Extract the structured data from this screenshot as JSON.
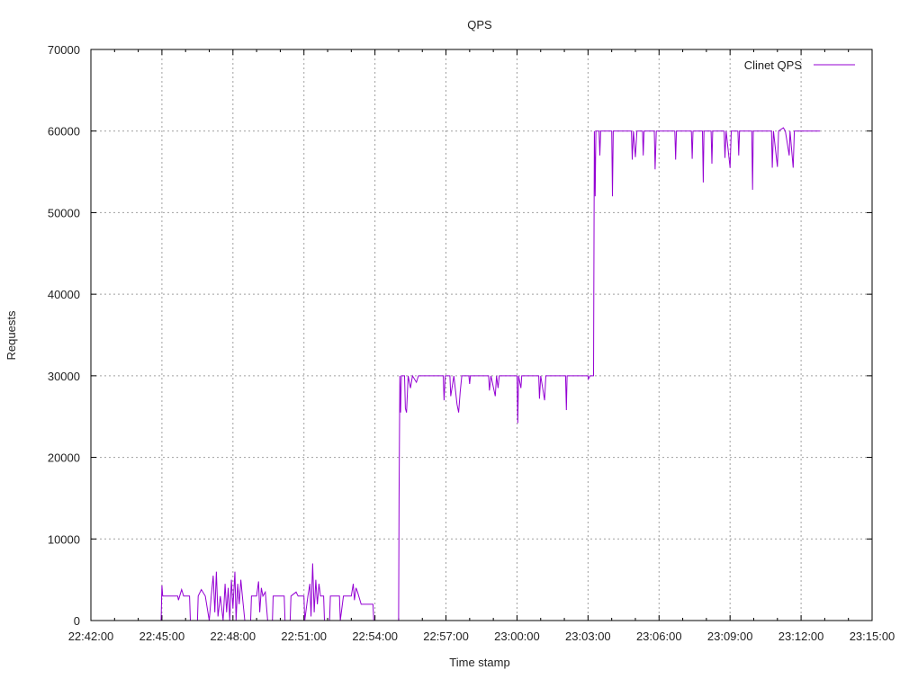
{
  "chart_data": {
    "type": "line",
    "title": "QPS",
    "xlabel": "Time stamp",
    "ylabel": "Requests",
    "xlim": [
      "22:42:00",
      "23:15:00"
    ],
    "ylim": [
      0,
      70000
    ],
    "x_tick_labels": [
      "22:42:00",
      "22:45:00",
      "22:48:00",
      "22:51:00",
      "22:54:00",
      "22:57:00",
      "23:00:00",
      "23:03:00",
      "23:06:00",
      "23:09:00",
      "23:12:00",
      "23:15:00"
    ],
    "y_tick_labels": [
      "0",
      "10000",
      "20000",
      "30000",
      "40000",
      "50000",
      "60000",
      "70000"
    ],
    "grid": true,
    "legend_position": "top-right",
    "series": [
      {
        "name": "Clinet QPS",
        "color": "#9400d3",
        "points": [
          [
            "22:44:58",
            0
          ],
          [
            "22:45:00",
            4300
          ],
          [
            "22:45:02",
            3000
          ],
          [
            "22:45:40",
            3000
          ],
          [
            "22:45:42",
            2500
          ],
          [
            "22:45:50",
            3800
          ],
          [
            "22:45:55",
            3000
          ],
          [
            "22:46:10",
            3000
          ],
          [
            "22:46:12",
            0
          ],
          [
            "22:46:30",
            0
          ],
          [
            "22:46:32",
            3000
          ],
          [
            "22:46:40",
            3800
          ],
          [
            "22:46:50",
            3000
          ],
          [
            "22:47:00",
            0
          ],
          [
            "22:47:05",
            3000
          ],
          [
            "22:47:10",
            5500
          ],
          [
            "22:47:14",
            1000
          ],
          [
            "22:47:18",
            6000
          ],
          [
            "22:47:22",
            500
          ],
          [
            "22:47:28",
            3000
          ],
          [
            "22:47:35",
            0
          ],
          [
            "22:47:40",
            4500
          ],
          [
            "22:47:44",
            1000
          ],
          [
            "22:47:48",
            4000
          ],
          [
            "22:47:52",
            0
          ],
          [
            "22:47:56",
            5000
          ],
          [
            "22:48:00",
            1500
          ],
          [
            "22:48:05",
            6000
          ],
          [
            "22:48:08",
            0
          ],
          [
            "22:48:12",
            4500
          ],
          [
            "22:48:16",
            2000
          ],
          [
            "22:48:20",
            5000
          ],
          [
            "22:48:24",
            3000
          ],
          [
            "22:48:30",
            0
          ],
          [
            "22:48:45",
            0
          ],
          [
            "22:48:47",
            3000
          ],
          [
            "22:49:00",
            3000
          ],
          [
            "22:49:05",
            4800
          ],
          [
            "22:49:08",
            1000
          ],
          [
            "22:49:12",
            4000
          ],
          [
            "22:49:16",
            3000
          ],
          [
            "22:49:22",
            3500
          ],
          [
            "22:49:28",
            0
          ],
          [
            "22:49:40",
            0
          ],
          [
            "22:49:42",
            3000
          ],
          [
            "22:50:10",
            3000
          ],
          [
            "22:50:12",
            0
          ],
          [
            "22:50:25",
            0
          ],
          [
            "22:50:27",
            3000
          ],
          [
            "22:50:40",
            3500
          ],
          [
            "22:50:45",
            3000
          ],
          [
            "22:51:00",
            3000
          ],
          [
            "22:51:02",
            0
          ],
          [
            "22:51:10",
            3000
          ],
          [
            "22:51:15",
            4500
          ],
          [
            "22:51:18",
            500
          ],
          [
            "22:51:22",
            7000
          ],
          [
            "22:51:26",
            1000
          ],
          [
            "22:51:30",
            5000
          ],
          [
            "22:51:34",
            2000
          ],
          [
            "22:51:38",
            4500
          ],
          [
            "22:51:42",
            3000
          ],
          [
            "22:51:50",
            3000
          ],
          [
            "22:51:52",
            0
          ],
          [
            "22:52:05",
            0
          ],
          [
            "22:52:07",
            3000
          ],
          [
            "22:52:30",
            3000
          ],
          [
            "22:52:32",
            0
          ],
          [
            "22:52:40",
            3000
          ],
          [
            "22:53:00",
            3000
          ],
          [
            "22:53:05",
            4500
          ],
          [
            "22:53:08",
            2500
          ],
          [
            "22:53:12",
            4000
          ],
          [
            "22:53:16",
            3500
          ],
          [
            "22:53:25",
            2000
          ],
          [
            "22:53:55",
            2000
          ],
          [
            "22:53:57",
            0
          ],
          [
            "22:55:00",
            0
          ],
          [
            "22:55:01",
            15000
          ],
          [
            "22:55:03",
            30000
          ],
          [
            "22:55:05",
            25500
          ],
          [
            "22:55:07",
            30000
          ],
          [
            "22:55:15",
            30000
          ],
          [
            "22:55:17",
            26000
          ],
          [
            "22:55:20",
            25500
          ],
          [
            "22:55:24",
            30000
          ],
          [
            "22:55:30",
            28500
          ],
          [
            "22:55:35",
            30000
          ],
          [
            "22:55:45",
            29200
          ],
          [
            "22:55:50",
            30000
          ],
          [
            "22:56:53",
            30000
          ],
          [
            "22:56:55",
            27000
          ],
          [
            "22:56:58",
            30000
          ],
          [
            "22:57:10",
            30000
          ],
          [
            "22:57:12",
            27500
          ],
          [
            "22:57:20",
            30000
          ],
          [
            "22:57:28",
            26500
          ],
          [
            "22:57:32",
            25500
          ],
          [
            "22:57:36",
            28000
          ],
          [
            "22:57:40",
            30000
          ],
          [
            "22:57:58",
            30000
          ],
          [
            "22:58:00",
            29000
          ],
          [
            "22:58:02",
            30000
          ],
          [
            "22:58:48",
            30000
          ],
          [
            "22:58:50",
            28200
          ],
          [
            "22:58:54",
            30000
          ],
          [
            "22:59:05",
            27500
          ],
          [
            "22:59:08",
            30000
          ],
          [
            "22:59:12",
            28500
          ],
          [
            "22:59:15",
            30000
          ],
          [
            "23:00:00",
            30000
          ],
          [
            "23:00:02",
            24200
          ],
          [
            "23:00:04",
            30000
          ],
          [
            "23:00:10",
            28500
          ],
          [
            "23:00:12",
            30000
          ],
          [
            "23:00:55",
            30000
          ],
          [
            "23:00:57",
            27200
          ],
          [
            "23:01:00",
            30000
          ],
          [
            "23:01:10",
            27000
          ],
          [
            "23:01:13",
            30000
          ],
          [
            "23:02:03",
            30000
          ],
          [
            "23:02:05",
            25800
          ],
          [
            "23:02:07",
            30000
          ],
          [
            "23:03:00",
            30000
          ],
          [
            "23:03:01",
            29600
          ],
          [
            "23:03:05",
            30000
          ],
          [
            "23:03:14",
            30000
          ],
          [
            "23:03:16",
            60000
          ],
          [
            "23:03:18",
            52000
          ],
          [
            "23:03:20",
            60000
          ],
          [
            "23:03:28",
            60000
          ],
          [
            "23:03:30",
            57000
          ],
          [
            "23:03:32",
            60000
          ],
          [
            "23:04:00",
            60000
          ],
          [
            "23:04:02",
            52000
          ],
          [
            "23:04:04",
            60000
          ],
          [
            "23:04:50",
            60000
          ],
          [
            "23:04:52",
            56500
          ],
          [
            "23:04:55",
            60000
          ],
          [
            "23:05:00",
            56800
          ],
          [
            "23:05:04",
            60000
          ],
          [
            "23:05:18",
            60000
          ],
          [
            "23:05:20",
            57000
          ],
          [
            "23:05:22",
            60000
          ],
          [
            "23:05:48",
            60000
          ],
          [
            "23:05:50",
            55300
          ],
          [
            "23:05:53",
            60000
          ],
          [
            "23:06:40",
            60000
          ],
          [
            "23:06:42",
            56500
          ],
          [
            "23:06:44",
            60000
          ],
          [
            "23:07:22",
            60000
          ],
          [
            "23:07:24",
            56600
          ],
          [
            "23:07:26",
            60000
          ],
          [
            "23:07:50",
            60000
          ],
          [
            "23:07:52",
            53700
          ],
          [
            "23:07:54",
            60000
          ],
          [
            "23:08:12",
            60000
          ],
          [
            "23:08:14",
            56000
          ],
          [
            "23:08:16",
            60000
          ],
          [
            "23:08:45",
            60000
          ],
          [
            "23:08:47",
            56700
          ],
          [
            "23:08:50",
            60000
          ],
          [
            "23:09:00",
            55500
          ],
          [
            "23:09:03",
            60000
          ],
          [
            "23:09:20",
            60000
          ],
          [
            "23:09:22",
            57000
          ],
          [
            "23:09:24",
            60000
          ],
          [
            "23:09:55",
            60000
          ],
          [
            "23:09:57",
            52800
          ],
          [
            "23:09:59",
            60000
          ],
          [
            "23:10:45",
            60000
          ],
          [
            "23:10:47",
            55500
          ],
          [
            "23:10:50",
            60000
          ],
          [
            "23:11:00",
            55600
          ],
          [
            "23:11:03",
            60000
          ],
          [
            "23:11:15",
            60400
          ],
          [
            "23:11:20",
            60000
          ],
          [
            "23:11:30",
            57000
          ],
          [
            "23:11:32",
            60000
          ],
          [
            "23:11:40",
            55500
          ],
          [
            "23:11:43",
            60000
          ],
          [
            "23:12:48",
            60000
          ]
        ]
      }
    ]
  }
}
